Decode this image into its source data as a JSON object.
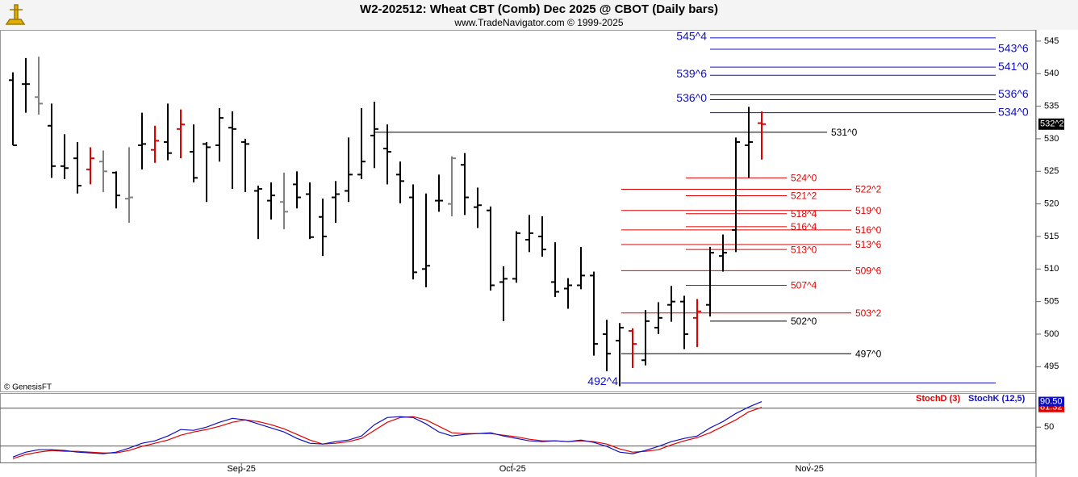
{
  "chart_data": [
    {
      "type": "ohlc",
      "title": "W2-202512:  Wheat CBT (Comb) Dec 2025 @ CBOT  (Daily bars)",
      "subtitle": "www.TradeNavigator.com © 1999-2025",
      "source": "© GenesisFT",
      "xlim": [
        -1,
        79.25
      ],
      "xticks": [
        {
          "value": 17.7,
          "label": "Sep-25"
        },
        {
          "value": 38.7,
          "label": "Oct-25"
        },
        {
          "value": 61.7,
          "label": "Nov-25"
        }
      ],
      "ylim": [
        491.2,
        546.6
      ],
      "yticks": [
        495,
        500,
        505,
        510,
        515,
        520,
        525,
        530,
        535,
        540,
        545
      ],
      "open": [
        539,
        538.4,
        536.4,
        532,
        525.8,
        527,
        525.3,
        526.5,
        524.8,
        520.8,
        529,
        528.3,
        529.5,
        531.5,
        528,
        529.2,
        529,
        531.7,
        529.5,
        522,
        520.5,
        520.3,
        523,
        521.5,
        518,
        521,
        522,
        524.5,
        530.5,
        528.5,
        524.5,
        521,
        510,
        520.5,
        520,
        526,
        519.5,
        519,
        508,
        508.5,
        514.5,
        515,
        508,
        507,
        507.5,
        509,
        500,
        499,
        500.5,
        496,
        501,
        504.5,
        505,
        502.5,
        504.5,
        512,
        516,
        529,
        532.4
      ],
      "high": [
        540.2,
        542.4,
        542.6,
        535.4,
        530.7,
        529.5,
        528.7,
        528.2,
        525,
        528.7,
        534,
        532,
        535.4,
        534.5,
        532.2,
        529.5,
        534.7,
        534.2,
        530,
        522.8,
        523.3,
        524.8,
        525,
        523.3,
        520.8,
        523.5,
        530.2,
        534.7,
        535.7,
        532.2,
        526.5,
        523,
        521.6,
        524.5,
        527.3,
        527.8,
        522.5,
        519.6,
        510.4,
        515.8,
        518.3,
        518.1,
        514.1,
        508.6,
        513.4,
        509.6,
        502.2,
        501.7,
        500.9,
        503.7,
        504.9,
        507.4,
        505.9,
        505.4,
        513.4,
        515.3,
        530.2,
        534.9,
        534.2
      ],
      "low": [
        529,
        534,
        533.7,
        524,
        523.8,
        521.6,
        523,
        521.8,
        519.3,
        517.1,
        525.3,
        526.3,
        526.7,
        527,
        523.3,
        520.3,
        526.5,
        522.3,
        521.8,
        514.6,
        517.6,
        516.1,
        519.3,
        514.6,
        512,
        517.1,
        520.3,
        523.8,
        525.5,
        523,
        520.1,
        508.4,
        507.2,
        518.8,
        518.1,
        518.3,
        516.3,
        506.7,
        502,
        507.9,
        512.6,
        511.9,
        505.7,
        503.9,
        506.9,
        496.7,
        494.3,
        492,
        494.8,
        495.2,
        500,
        501.9,
        497.7,
        498,
        502.7,
        509.6,
        512.6,
        524,
        526.8
      ],
      "close": [
        529,
        538.4,
        535.4,
        525.8,
        525.5,
        522.8,
        527,
        525,
        521.3,
        521,
        529.2,
        529.7,
        527.8,
        532.2,
        524,
        528.7,
        533.2,
        531.5,
        529.2,
        522.3,
        521.3,
        518.8,
        521,
        514.9,
        515,
        521.5,
        524.5,
        526.5,
        531.5,
        528,
        523.5,
        509.5,
        510.5,
        520.5,
        527,
        521,
        519.8,
        507.5,
        508.5,
        515.5,
        515.5,
        513,
        506.5,
        507.5,
        509,
        498.5,
        497,
        501,
        498.5,
        502,
        502.5,
        505,
        500,
        503.5,
        512.5,
        512.5,
        529.5,
        529.5,
        532.25
      ],
      "bar_colors": [
        "#000000",
        "#000000",
        "#808080",
        "#000000",
        "#000000",
        "#000000",
        "#e00000",
        "#808080",
        "#000000",
        "#808080",
        "#000000",
        "#e00000",
        "#000000",
        "#e00000",
        "#000000",
        "#000000",
        "#000000",
        "#000000",
        "#000000",
        "#000000",
        "#000000",
        "#808080",
        "#000000",
        "#000000",
        "#000000",
        "#000000",
        "#000000",
        "#000000",
        "#000000",
        "#000000",
        "#000000",
        "#000000",
        "#000000",
        "#000000",
        "#808080",
        "#000000",
        "#000000",
        "#000000",
        "#000000",
        "#000000",
        "#000000",
        "#000000",
        "#000000",
        "#000000",
        "#000000",
        "#000000",
        "#000000",
        "#000000",
        "#e00000",
        "#000000",
        "#000000",
        "#000000",
        "#000000",
        "#e00000",
        "#000000",
        "#000000",
        "#000000",
        "#000000",
        "#e00000"
      ],
      "last_label": "532^2",
      "levels": [
        {
          "value": 545.5,
          "label": "545^4",
          "color": "#1010c0",
          "side": "left"
        },
        {
          "value": 543.75,
          "label": "543^6",
          "color": "#1010c0",
          "side": "right"
        },
        {
          "value": 541,
          "label": "541^0",
          "color": "#1010c0",
          "side": "right"
        },
        {
          "value": 539.75,
          "label": "539^6",
          "color": "#1010c0",
          "side": "left"
        },
        {
          "value": 536.75,
          "label": "536^6",
          "color": "#1010c0",
          "side": "right"
        },
        {
          "value": 536,
          "label": "536^0",
          "color": "#1010c0",
          "side": "left"
        },
        {
          "value": 534,
          "label": "534^0",
          "color": "#1010c0",
          "side": "right"
        },
        {
          "value": 492.5,
          "label": "492^4",
          "color": "#1010c0",
          "side": "left"
        },
        {
          "value": 531,
          "label": "531^0",
          "color": "#000000",
          "side": "right"
        },
        {
          "value": 502,
          "label": "502^0",
          "color": "#000000",
          "side": "left"
        },
        {
          "value": 497,
          "label": "497^0",
          "color": "#000000",
          "side": "right"
        },
        {
          "value": 524,
          "label": "524^0",
          "color": "#e00000",
          "side": "left"
        },
        {
          "value": 522.25,
          "label": "522^2",
          "color": "#e00000",
          "side": "right"
        },
        {
          "value": 521.25,
          "label": "521^2",
          "color": "#e00000",
          "side": "left"
        },
        {
          "value": 519,
          "label": "519^0",
          "color": "#e00000",
          "side": "right"
        },
        {
          "value": 518.5,
          "label": "518^4",
          "color": "#e00000",
          "side": "left"
        },
        {
          "value": 516.5,
          "label": "516^4",
          "color": "#e00000",
          "side": "left"
        },
        {
          "value": 516,
          "label": "516^0",
          "color": "#e00000",
          "side": "right"
        },
        {
          "value": 513.75,
          "label": "513^6",
          "color": "#e00000",
          "side": "right"
        },
        {
          "value": 513,
          "label": "513^0",
          "color": "#e00000",
          "side": "left"
        },
        {
          "value": 509.75,
          "label": "509^6",
          "color": "#e00000",
          "side": "right"
        },
        {
          "value": 507.5,
          "label": "507^4",
          "color": "#e00000",
          "side": "left"
        },
        {
          "value": 503.25,
          "label": "503^2",
          "color": "#e00000",
          "side": "right"
        }
      ]
    },
    {
      "type": "line",
      "ylim": [
        -6,
        104
      ],
      "yticks": [
        50
      ],
      "levels": [
        20,
        80
      ],
      "series": [
        {
          "name": "StochD (3)",
          "color": "#e00000",
          "last_label": "81.32",
          "values": [
            0.2,
            6.6,
            10.4,
            13.0,
            11.7,
            11.7,
            10.4,
            9.1,
            9.1,
            13.0,
            19.4,
            24.5,
            29.6,
            37.2,
            42.3,
            46.2,
            51.3,
            57.7,
            61.5,
            58.9,
            53.8,
            47.4,
            38.5,
            29.6,
            23.2,
            24.5,
            27.0,
            32.1,
            44.9,
            57.7,
            65.3,
            66.6,
            61.5,
            51.3,
            41.1,
            39.8,
            39.8,
            39.8,
            37.2,
            34.7,
            30.8,
            28.3,
            28.3,
            27.0,
            28.3,
            27.0,
            23.2,
            15.5,
            10.4,
            11.7,
            14.2,
            21.9,
            28.3,
            33.4,
            41.1,
            51.3,
            61.5,
            74.3,
            81.32
          ]
        },
        {
          "name": "StochK (12,5)",
          "color": "#1010c0",
          "last_label": "90.50",
          "values": [
            2.7,
            10.4,
            14.2,
            14.2,
            13.0,
            10.4,
            9.1,
            7.9,
            10.4,
            16.8,
            24.5,
            28.3,
            36.0,
            46.2,
            44.9,
            50,
            57.7,
            64.0,
            61.5,
            55.1,
            48.7,
            42.3,
            32.1,
            24.5,
            23.2,
            27.0,
            29.6,
            36.0,
            53.8,
            65.3,
            66.6,
            65.3,
            55.1,
            42.3,
            36.0,
            38.5,
            39.8,
            41.1,
            36.0,
            32.1,
            28.3,
            27.0,
            28.3,
            27.0,
            29.6,
            25.7,
            19.4,
            10.4,
            7.9,
            13.0,
            19.4,
            27.0,
            32.1,
            36.0,
            48.7,
            58.9,
            71.7,
            81.9,
            90.5
          ]
        }
      ]
    }
  ]
}
